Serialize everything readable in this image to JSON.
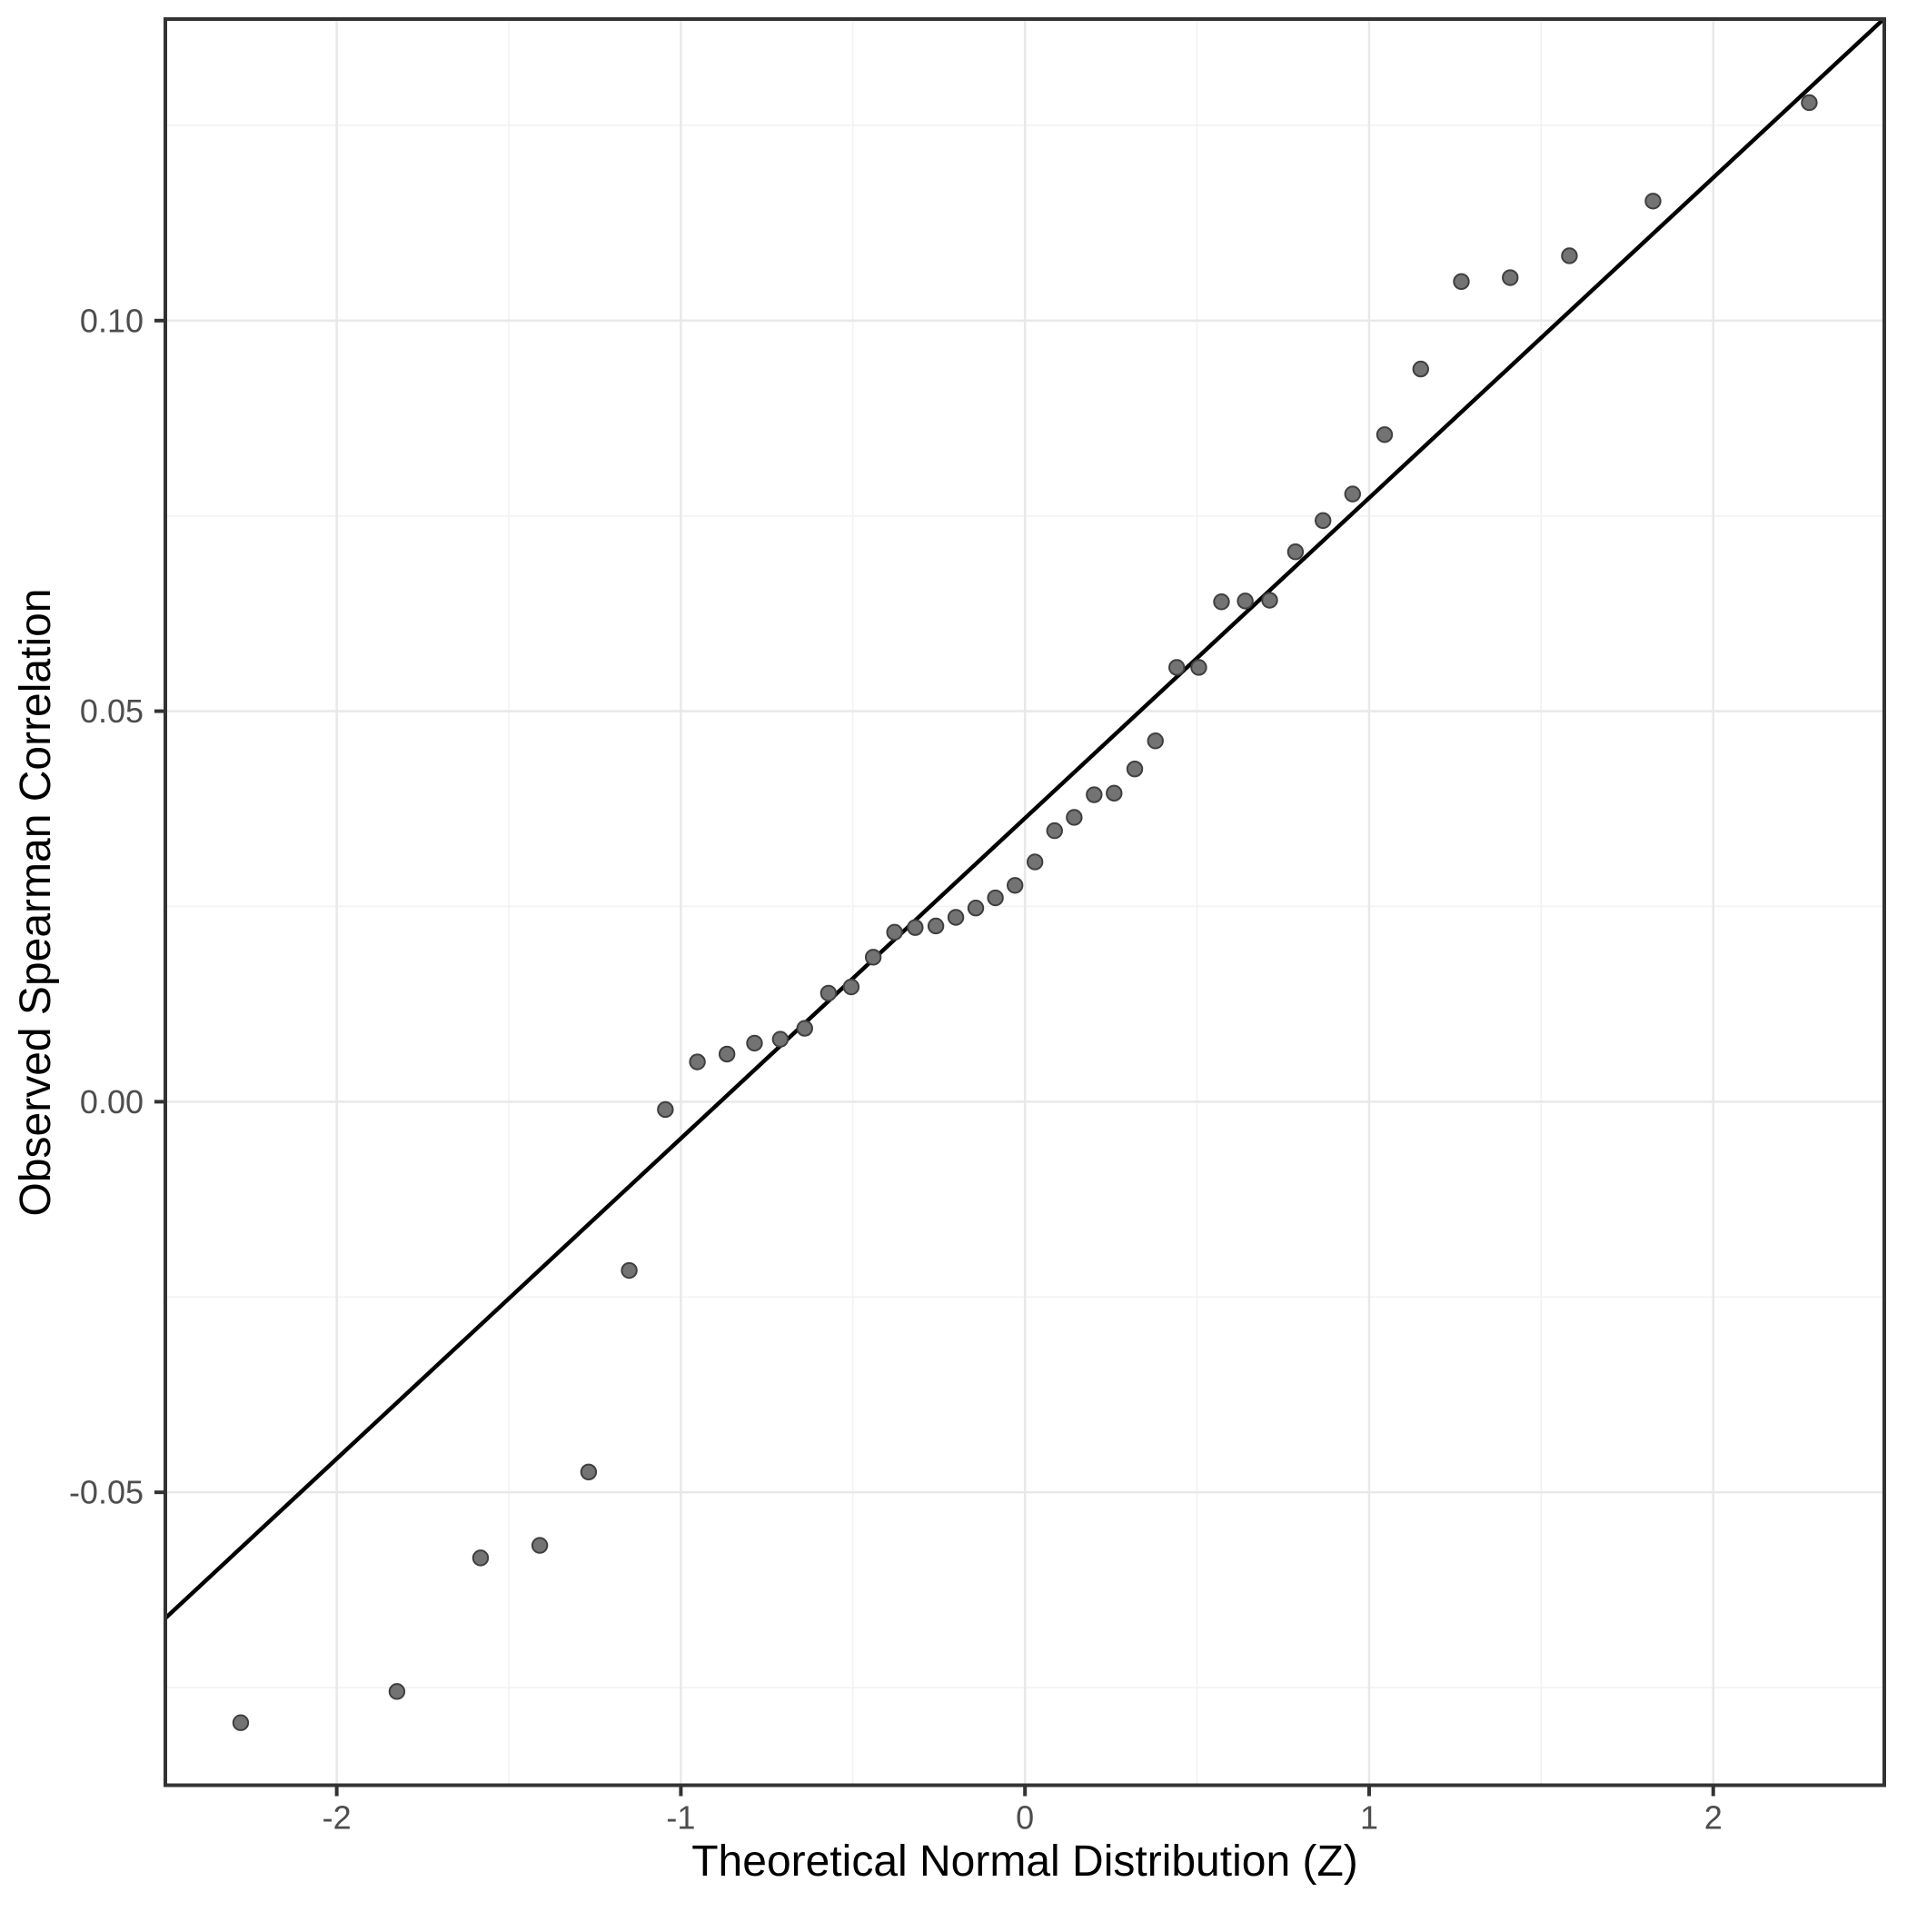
{
  "chart_data": {
    "type": "scatter",
    "title": "",
    "xlabel": "Theoretical Normal Distribution (Z)",
    "ylabel": "Observed Spearman Correlation",
    "xlim": [
      -2.498,
      2.497
    ],
    "ylim": [
      -0.0875,
      0.1386
    ],
    "grid": "major+minor",
    "legend_position": "none",
    "x_ticks": {
      "values": [
        -2,
        -1,
        0,
        1,
        2
      ],
      "labels": [
        "-2",
        "-1",
        "0",
        "1",
        "2"
      ]
    },
    "y_ticks": {
      "values": [
        0.1,
        0.05,
        0.0,
        -0.05
      ],
      "labels": [
        "0.10",
        "0.05",
        "0.00",
        "-0.05"
      ]
    },
    "x_minor": [
      -1.5,
      -0.5,
      0.5,
      1.5
    ],
    "y_minor": [
      0.125,
      0.075,
      0.025,
      -0.025,
      -0.075
    ],
    "ref_line": {
      "slope": 0.041,
      "intercept": 0.0363
    },
    "points": [
      [
        -2.279,
        -0.0795
      ],
      [
        -1.825,
        -0.0755
      ],
      [
        -1.582,
        -0.0584
      ],
      [
        -1.41,
        -0.0568
      ],
      [
        -1.268,
        -0.0474
      ],
      [
        -1.15,
        -0.0216
      ],
      [
        -1.045,
        -0.001
      ],
      [
        -0.952,
        0.0051
      ],
      [
        -0.866,
        0.0061
      ],
      [
        -0.786,
        0.0075
      ],
      [
        -0.711,
        0.008
      ],
      [
        -0.64,
        0.0094
      ],
      [
        -0.571,
        0.0139
      ],
      [
        -0.505,
        0.0147
      ],
      [
        -0.441,
        0.0185
      ],
      [
        -0.379,
        0.0217
      ],
      [
        -0.319,
        0.0223
      ],
      [
        -0.259,
        0.0225
      ],
      [
        -0.201,
        0.0236
      ],
      [
        -0.143,
        0.0248
      ],
      [
        -0.086,
        0.0261
      ],
      [
        -0.029,
        0.0277
      ],
      [
        0.029,
        0.0307
      ],
      [
        0.086,
        0.0347
      ],
      [
        0.143,
        0.0364
      ],
      [
        0.201,
        0.0393
      ],
      [
        0.259,
        0.0395
      ],
      [
        0.319,
        0.0426
      ],
      [
        0.379,
        0.0462
      ],
      [
        0.441,
        0.0556
      ],
      [
        0.505,
        0.0556
      ],
      [
        0.571,
        0.064
      ],
      [
        0.64,
        0.0641
      ],
      [
        0.711,
        0.0642
      ],
      [
        0.786,
        0.0704
      ],
      [
        0.866,
        0.0744
      ],
      [
        0.952,
        0.0778
      ],
      [
        1.045,
        0.0854
      ],
      [
        1.15,
        0.0938
      ],
      [
        1.268,
        0.105
      ],
      [
        1.41,
        0.1055
      ],
      [
        1.582,
        0.1083
      ],
      [
        1.825,
        0.1153
      ],
      [
        2.279,
        0.1279
      ]
    ]
  },
  "style": {
    "background": "#ffffff",
    "panel_background": "#ffffff",
    "panel_border": "#333333",
    "grid_major": "#e8e8e8",
    "grid_minor": "#f2f2f2",
    "tick_color": "#333333",
    "tick_label_color": "#4d4d4d",
    "axis_title_color": "#000000",
    "point_fill": "#737373",
    "point_stroke": "#3f3f3f",
    "ref_line_color": "#000000"
  }
}
